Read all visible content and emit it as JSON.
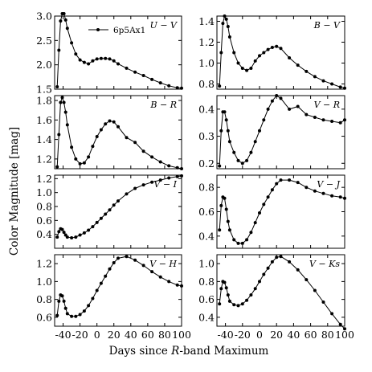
{
  "figure": {
    "ylabel": "Color Magnitude [mag]",
    "xlabel": "Days since R-band Maximum",
    "xlabel_parts": [
      "Days since ",
      "R",
      "-band Maximum"
    ],
    "legend_label": "6p5Ax1",
    "line_color": "#000000",
    "x_ticks": [
      "-40",
      "-20",
      "0",
      "20",
      "40",
      "60",
      "80",
      "100"
    ],
    "x_ticks_right": [
      "-40",
      "-20",
      "0",
      "20",
      "40",
      "60",
      "80",
      "100"
    ]
  },
  "chart_data": [
    {
      "type": "line",
      "label": "U − V",
      "name": "U-V",
      "xlim": [
        -50,
        100
      ],
      "ylim": [
        1.5,
        3.0
      ],
      "yticks": [
        "1.5",
        "2.0",
        "2.5",
        "3.0"
      ],
      "series": [
        {
          "name": "6p5Ax1",
          "x": [
            -47,
            -45,
            -43,
            -41,
            -39,
            -37,
            -35,
            -30,
            -25,
            -20,
            -15,
            -10,
            -5,
            0,
            5,
            10,
            15,
            20,
            25,
            35,
            45,
            55,
            65,
            75,
            85,
            95,
            100
          ],
          "y": [
            1.55,
            2.3,
            2.9,
            3.05,
            3.05,
            2.92,
            2.75,
            2.45,
            2.22,
            2.1,
            2.05,
            2.02,
            2.08,
            2.12,
            2.13,
            2.13,
            2.12,
            2.08,
            2.02,
            1.93,
            1.85,
            1.78,
            1.7,
            1.63,
            1.57,
            1.53,
            1.52
          ]
        }
      ]
    },
    {
      "type": "line",
      "label": "B − V",
      "name": "B-V",
      "xlim": [
        -50,
        100
      ],
      "ylim": [
        0.75,
        1.45
      ],
      "yticks": [
        "0.8",
        "1.0",
        "1.2",
        "1.4"
      ],
      "series": [
        {
          "name": "6p5Ax1",
          "x": [
            -47,
            -45,
            -43,
            -41,
            -39,
            -37,
            -35,
            -30,
            -25,
            -20,
            -15,
            -10,
            -5,
            0,
            5,
            10,
            15,
            20,
            25,
            35,
            45,
            55,
            65,
            75,
            85,
            95,
            100
          ],
          "y": [
            0.78,
            1.1,
            1.38,
            1.45,
            1.42,
            1.35,
            1.25,
            1.1,
            1.0,
            0.95,
            0.93,
            0.95,
            1.02,
            1.07,
            1.1,
            1.13,
            1.15,
            1.16,
            1.14,
            1.05,
            0.98,
            0.92,
            0.87,
            0.83,
            0.8,
            0.77,
            0.76
          ]
        }
      ]
    },
    {
      "type": "line",
      "label": "B − R",
      "name": "B-R",
      "xlim": [
        -50,
        100
      ],
      "ylim": [
        1.1,
        1.85
      ],
      "yticks": [
        "1.2",
        "1.4",
        "1.6",
        "1.8"
      ],
      "series": [
        {
          "name": "6p5Ax1",
          "x": [
            -47,
            -45,
            -43,
            -41,
            -39,
            -37,
            -35,
            -30,
            -25,
            -20,
            -15,
            -10,
            -5,
            0,
            5,
            10,
            15,
            20,
            25,
            35,
            45,
            55,
            65,
            75,
            85,
            95,
            100
          ],
          "y": [
            1.12,
            1.45,
            1.78,
            1.83,
            1.78,
            1.68,
            1.55,
            1.32,
            1.2,
            1.15,
            1.16,
            1.22,
            1.33,
            1.43,
            1.5,
            1.56,
            1.59,
            1.58,
            1.53,
            1.42,
            1.37,
            1.28,
            1.22,
            1.17,
            1.13,
            1.11,
            1.1
          ]
        }
      ]
    },
    {
      "type": "line",
      "label": "V − R",
      "name": "V-R",
      "xlim": [
        -50,
        100
      ],
      "ylim": [
        0.18,
        0.45
      ],
      "yticks": [
        "0.2",
        "0.3",
        "0.4"
      ],
      "series": [
        {
          "name": "6p5Ax1",
          "x": [
            -47,
            -45,
            -43,
            -41,
            -39,
            -37,
            -35,
            -30,
            -25,
            -20,
            -15,
            -10,
            -5,
            0,
            5,
            10,
            15,
            20,
            25,
            35,
            45,
            55,
            65,
            75,
            85,
            95,
            100
          ],
          "y": [
            0.19,
            0.32,
            0.39,
            0.39,
            0.36,
            0.32,
            0.28,
            0.24,
            0.21,
            0.2,
            0.21,
            0.24,
            0.28,
            0.32,
            0.36,
            0.4,
            0.43,
            0.45,
            0.44,
            0.4,
            0.41,
            0.38,
            0.37,
            0.36,
            0.355,
            0.35,
            0.36
          ]
        }
      ]
    },
    {
      "type": "line",
      "label": "V − I",
      "name": "V-I",
      "xlim": [
        -50,
        100
      ],
      "ylim": [
        0.2,
        1.25
      ],
      "yticks": [
        "0.4",
        "0.6",
        "0.8",
        "1.0",
        "1.2"
      ],
      "series": [
        {
          "name": "6p5Ax1",
          "x": [
            -47,
            -45,
            -43,
            -41,
            -39,
            -37,
            -35,
            -30,
            -25,
            -20,
            -15,
            -10,
            -5,
            0,
            5,
            10,
            15,
            20,
            25,
            35,
            45,
            55,
            65,
            75,
            85,
            95,
            100
          ],
          "y": [
            0.36,
            0.44,
            0.48,
            0.47,
            0.43,
            0.39,
            0.36,
            0.35,
            0.36,
            0.39,
            0.42,
            0.46,
            0.51,
            0.57,
            0.63,
            0.69,
            0.75,
            0.82,
            0.88,
            0.98,
            1.06,
            1.11,
            1.15,
            1.18,
            1.21,
            1.23,
            1.24
          ]
        }
      ]
    },
    {
      "type": "line",
      "label": "V − J",
      "name": "V-J",
      "xlim": [
        -50,
        100
      ],
      "ylim": [
        0.3,
        0.9
      ],
      "yticks": [
        "0.4",
        "0.6",
        "0.8"
      ],
      "series": [
        {
          "name": "6p5Ax1",
          "x": [
            -47,
            -45,
            -43,
            -41,
            -39,
            -37,
            -35,
            -30,
            -25,
            -20,
            -15,
            -10,
            -5,
            0,
            5,
            10,
            15,
            20,
            25,
            35,
            45,
            55,
            65,
            75,
            85,
            95,
            100
          ],
          "y": [
            0.45,
            0.65,
            0.72,
            0.71,
            0.62,
            0.52,
            0.45,
            0.37,
            0.34,
            0.34,
            0.37,
            0.43,
            0.51,
            0.59,
            0.66,
            0.72,
            0.78,
            0.83,
            0.86,
            0.86,
            0.84,
            0.8,
            0.77,
            0.75,
            0.73,
            0.72,
            0.71
          ]
        }
      ]
    },
    {
      "type": "line",
      "label": "V − H",
      "name": "V-H",
      "xlim": [
        -50,
        100
      ],
      "ylim": [
        0.5,
        1.3
      ],
      "yticks": [
        "0.6",
        "0.8",
        "1.0",
        "1.2"
      ],
      "series": [
        {
          "name": "6p5Ax1",
          "x": [
            -47,
            -45,
            -43,
            -41,
            -39,
            -37,
            -35,
            -30,
            -25,
            -20,
            -15,
            -10,
            -5,
            0,
            5,
            10,
            15,
            20,
            25,
            35,
            45,
            55,
            65,
            75,
            85,
            95,
            100
          ],
          "y": [
            0.62,
            0.78,
            0.85,
            0.84,
            0.78,
            0.7,
            0.64,
            0.61,
            0.61,
            0.63,
            0.67,
            0.73,
            0.81,
            0.9,
            0.98,
            1.06,
            1.14,
            1.21,
            1.26,
            1.28,
            1.24,
            1.18,
            1.11,
            1.05,
            1.0,
            0.96,
            0.95
          ]
        }
      ]
    },
    {
      "type": "line",
      "label": "V − Ks",
      "name": "V-Ks",
      "xlim": [
        -50,
        100
      ],
      "ylim": [
        0.3,
        1.1
      ],
      "yticks": [
        "0.4",
        "0.6",
        "0.8",
        "1.0"
      ],
      "series": [
        {
          "name": "6p5Ax1",
          "x": [
            -47,
            -45,
            -43,
            -41,
            -39,
            -37,
            -35,
            -30,
            -25,
            -20,
            -15,
            -10,
            -5,
            0,
            5,
            10,
            15,
            20,
            25,
            35,
            45,
            55,
            65,
            75,
            85,
            95,
            100
          ],
          "y": [
            0.55,
            0.72,
            0.8,
            0.79,
            0.73,
            0.65,
            0.58,
            0.54,
            0.53,
            0.55,
            0.59,
            0.65,
            0.72,
            0.8,
            0.88,
            0.95,
            1.02,
            1.07,
            1.08,
            1.02,
            0.93,
            0.82,
            0.7,
            0.57,
            0.44,
            0.32,
            0.27
          ]
        }
      ]
    }
  ]
}
